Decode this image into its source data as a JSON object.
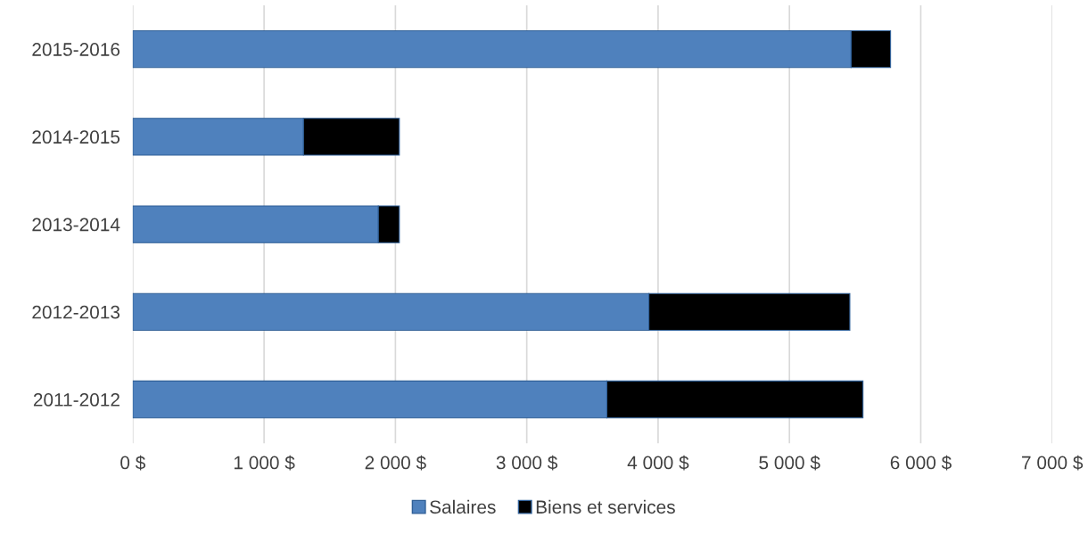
{
  "chart_data": {
    "type": "bar",
    "orientation": "horizontal",
    "stacked": true,
    "categories": [
      "2015-2016",
      "2014-2015",
      "2013-2014",
      "2012-2013",
      "2011-2012"
    ],
    "series": [
      {
        "name": "Salaires",
        "color": "#4f81bd",
        "values": [
          5470,
          1300,
          1870,
          3930,
          3610
        ]
      },
      {
        "name": "Biens et services",
        "color": "#000000",
        "values": [
          300,
          730,
          160,
          1530,
          1950
        ]
      }
    ],
    "xlim": [
      0,
      7000
    ],
    "xticks": [
      {
        "value": 0,
        "label": "0 $"
      },
      {
        "value": 1000,
        "label": "1 000 $"
      },
      {
        "value": 2000,
        "label": "2 000 $"
      },
      {
        "value": 3000,
        "label": "3 000 $"
      },
      {
        "value": 4000,
        "label": "4 000 $"
      },
      {
        "value": 5000,
        "label": "5 000 $"
      },
      {
        "value": 6000,
        "label": "6 000 $"
      },
      {
        "value": 7000,
        "label": "7 000 $"
      }
    ],
    "grid": "x",
    "legend": "bottom"
  }
}
